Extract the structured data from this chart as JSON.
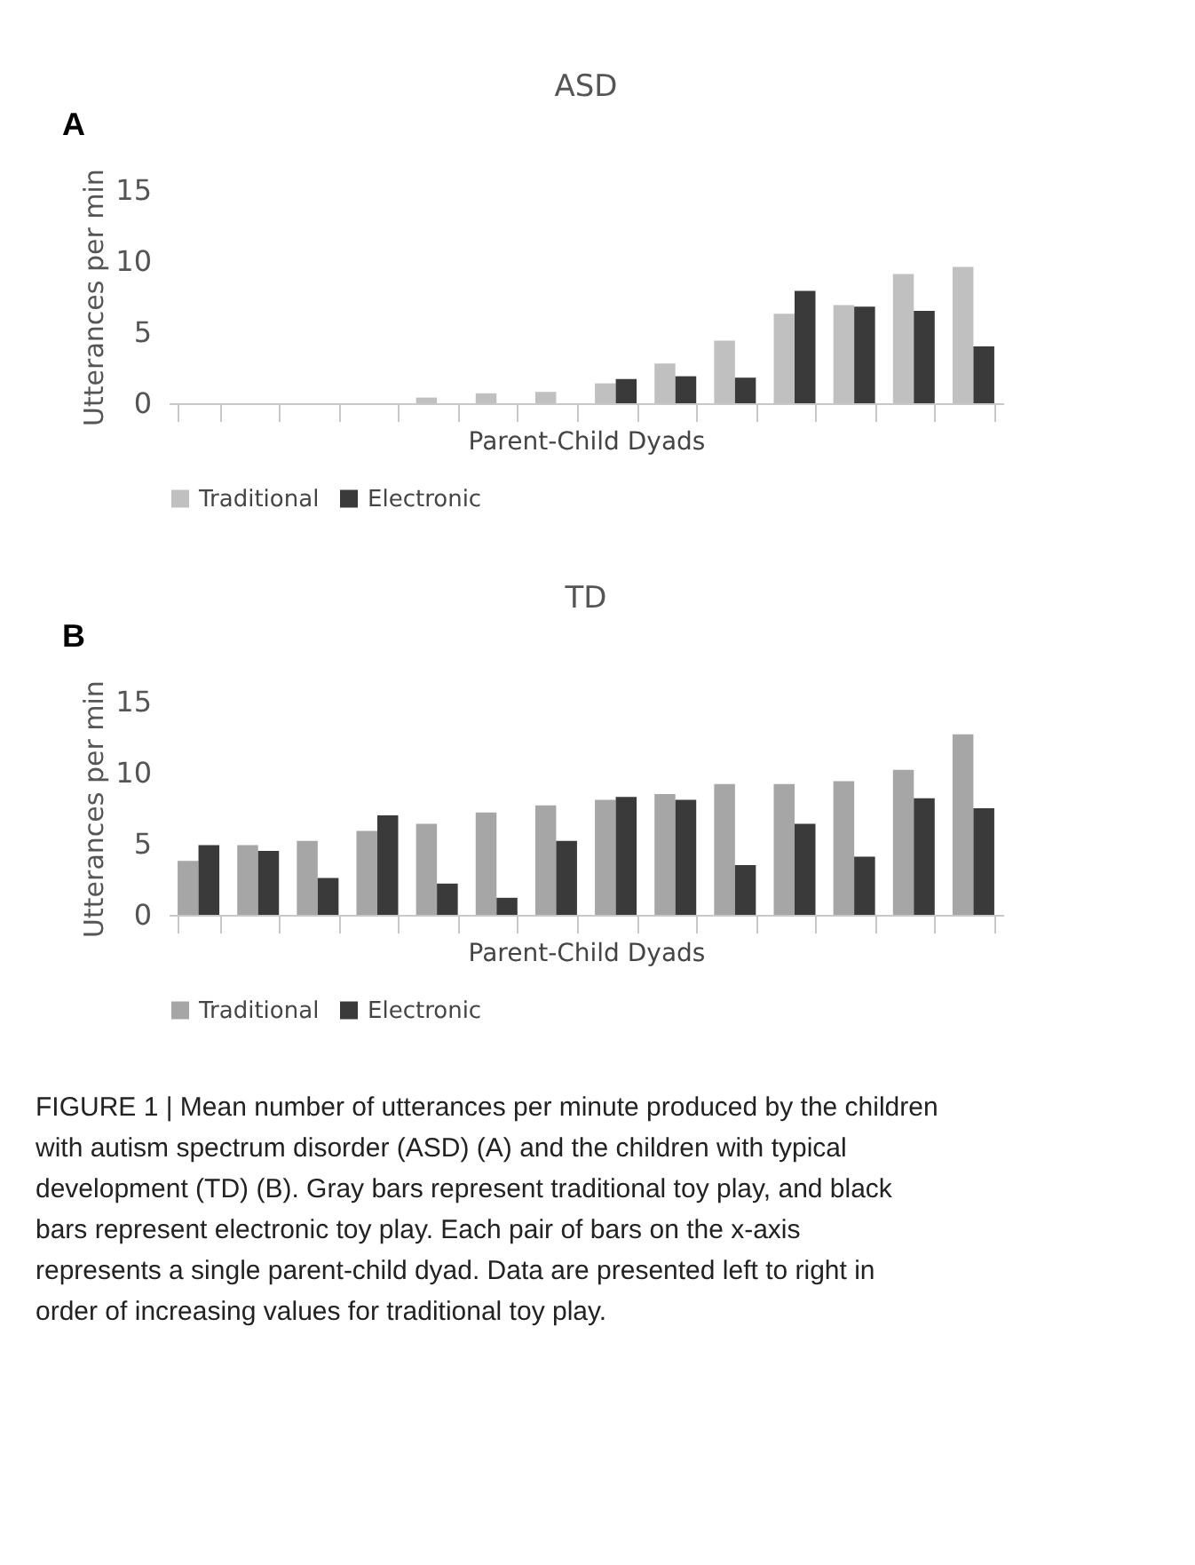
{
  "chart_data": [
    {
      "type": "bar",
      "title": "ASD",
      "xlabel": "Parent-Child Dyads",
      "ylabel": "Utterances per min",
      "annotations": [
        "A"
      ],
      "categories": [
        null,
        null,
        null,
        null,
        null,
        null,
        null,
        null,
        null,
        null,
        null,
        null,
        null,
        null
      ],
      "series": [
        {
          "name": "Traditional",
          "color": "#c0c0c0",
          "values": [
            0,
            0,
            0,
            0,
            0.4,
            0.7,
            0.8,
            1.4,
            2.8,
            4.4,
            6.3,
            6.9,
            9.1,
            9.6
          ]
        },
        {
          "name": "Electronic",
          "color": "#3a3a3a",
          "values": [
            0,
            0,
            0,
            0,
            0,
            0,
            0,
            1.7,
            1.9,
            1.8,
            7.9,
            6.8,
            6.5,
            4.0
          ]
        }
      ],
      "ylim": [
        0,
        15
      ],
      "yticks": [
        0,
        5,
        10,
        15
      ],
      "grid": false,
      "legend": "bottom"
    },
    {
      "type": "bar",
      "title": "TD",
      "xlabel": "Parent-Child Dyads",
      "ylabel": "Utterances per min",
      "annotations": [
        "B",
        "FIGURE 1 | Mean number of utterances per minute produced by the children with autism spectrum disorder (ASD) (A) and the children with typical development (TD) (B). Gray bars represent traditional toy play, and black bars represent electronic toy play. Each pair of bars on the x-axis represents a single parent-child dyad. Data are presented left to right in order of increasing values for traditional toy play."
      ],
      "categories": [
        null,
        null,
        null,
        null,
        null,
        null,
        null,
        null,
        null,
        null,
        null,
        null,
        null,
        null
      ],
      "series": [
        {
          "name": "Traditional",
          "color": "#a6a6a6",
          "values": [
            3.8,
            4.9,
            5.2,
            5.9,
            6.4,
            7.2,
            7.7,
            8.1,
            8.5,
            9.2,
            9.2,
            9.4,
            10.2,
            12.7
          ]
        },
        {
          "name": "Electronic",
          "color": "#3a3a3a",
          "values": [
            4.9,
            4.5,
            2.6,
            7.0,
            2.2,
            1.2,
            5.2,
            8.3,
            8.1,
            3.5,
            6.4,
            4.1,
            8.2,
            7.5
          ]
        }
      ],
      "ylim": [
        0,
        15
      ],
      "yticks": [
        0,
        5,
        10,
        15
      ],
      "grid": false,
      "legend": "bottom"
    }
  ]
}
